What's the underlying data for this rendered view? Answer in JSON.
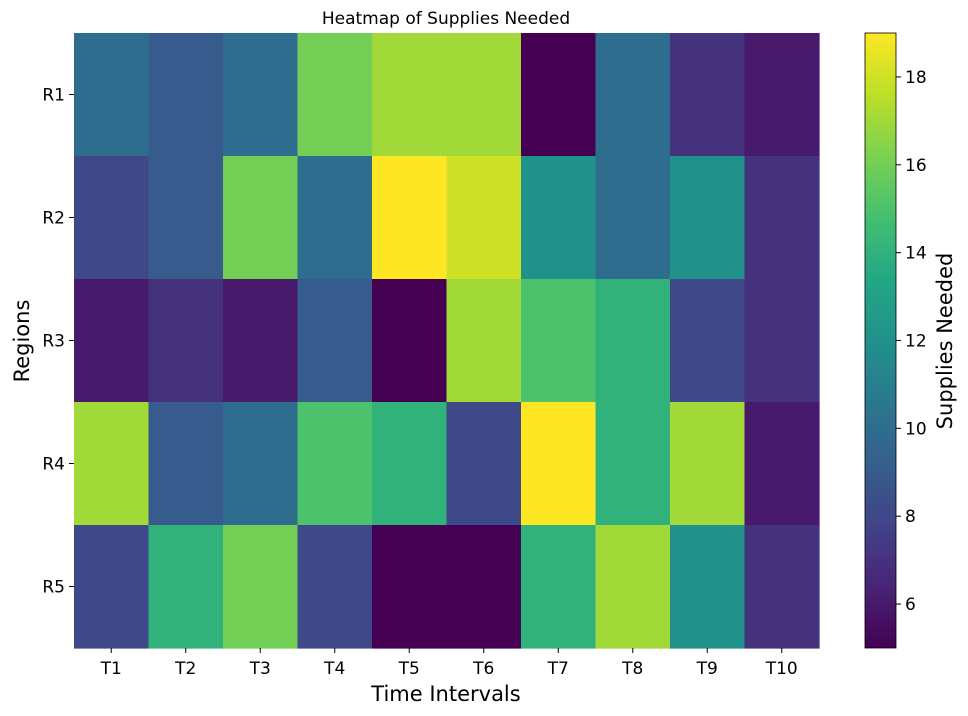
{
  "chart_data": {
    "type": "heatmap",
    "title": "Heatmap of Supplies Needed",
    "xlabel": "Time Intervals",
    "ylabel": "Regions",
    "x_categories": [
      "T1",
      "T2",
      "T3",
      "T4",
      "T5",
      "T6",
      "T7",
      "T8",
      "T9",
      "T10"
    ],
    "y_categories": [
      "R1",
      "R2",
      "R3",
      "R4",
      "R5"
    ],
    "values": [
      [
        10,
        9,
        10,
        16,
        17,
        17,
        5,
        10,
        7,
        6
      ],
      [
        8,
        9,
        16,
        10,
        19,
        18,
        12,
        10,
        12,
        7
      ],
      [
        6,
        7,
        6,
        9,
        5,
        17,
        15,
        14,
        8,
        7
      ],
      [
        17,
        9,
        10,
        15,
        14,
        8,
        19,
        14,
        17,
        6
      ],
      [
        8,
        14,
        16,
        8,
        5,
        5,
        14,
        17,
        12,
        7
      ]
    ],
    "colorbar": {
      "label": "Supplies Needed",
      "range": [
        5,
        19
      ],
      "ticks": [
        6,
        8,
        10,
        12,
        14,
        16,
        18
      ],
      "colormap": "viridis"
    },
    "grid": false
  }
}
